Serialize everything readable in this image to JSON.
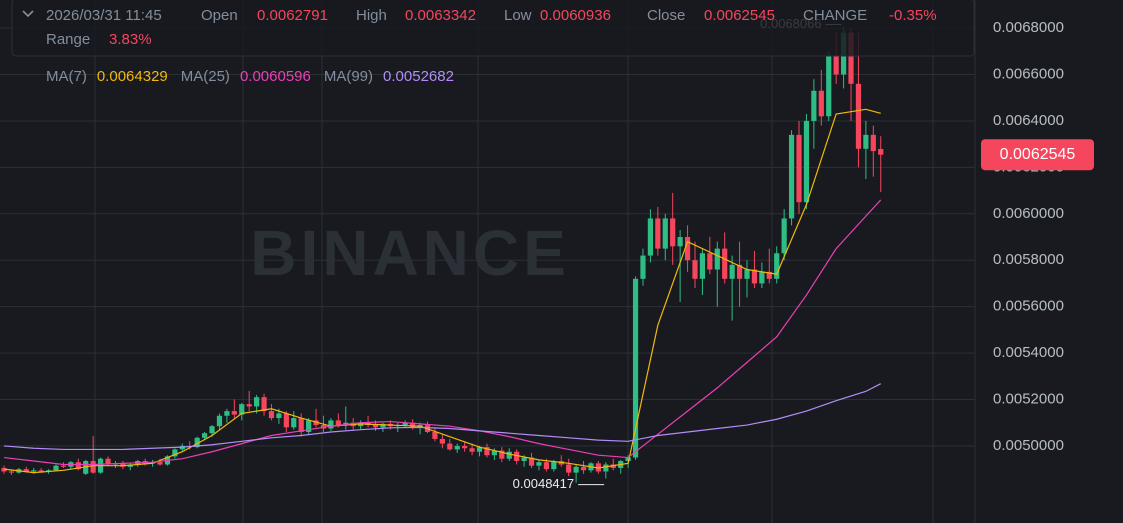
{
  "info": {
    "datetime": "2026/03/31 11:45",
    "open_label": "Open",
    "high_label": "High",
    "low_label": "Low",
    "close_label": "Close",
    "change_label": "CHANGE",
    "change": "-0.35%",
    "range_label": "Range",
    "range": "3.83%"
  },
  "watermark": "BINANCE",
  "chart_data": {
    "type": "candlestick",
    "up_color": "#2ebd85",
    "down_color": "#f6465d",
    "ylim": [
      0.004668,
      0.006921
    ],
    "yticks": [
      {
        "value": 0.005,
        "label": "0.0050000"
      },
      {
        "value": 0.0052,
        "label": "0.0052000"
      },
      {
        "value": 0.0054,
        "label": "0.0054000"
      },
      {
        "value": 0.0056,
        "label": "0.0056000"
      },
      {
        "value": 0.0058,
        "label": "0.0058000"
      },
      {
        "value": 0.006,
        "label": "0.0060000"
      },
      {
        "value": 0.0062,
        "label": "0.0062000"
      },
      {
        "value": 0.0064,
        "label": "0.0064000"
      },
      {
        "value": 0.0066,
        "label": "0.0066000"
      },
      {
        "value": 0.0068,
        "label": "0.0068000"
      }
    ],
    "grid": true,
    "candles": [
      [
        0.004905,
        0.004915,
        0.00488,
        0.00489
      ],
      [
        0.00489,
        0.0049,
        0.004875,
        0.004885
      ],
      [
        0.004885,
        0.004905,
        0.00488,
        0.0049
      ],
      [
        0.0049,
        0.00491,
        0.004885,
        0.00489
      ],
      [
        0.00489,
        0.004905,
        0.00488,
        0.004895
      ],
      [
        0.004895,
        0.004905,
        0.004885,
        0.00489
      ],
      [
        0.00489,
        0.0049,
        0.00488,
        0.004895
      ],
      [
        0.004895,
        0.00492,
        0.00489,
        0.004915
      ],
      [
        0.004915,
        0.00493,
        0.004905,
        0.00491
      ],
      [
        0.00491,
        0.004935,
        0.0049,
        0.00493
      ],
      [
        0.00493,
        0.004945,
        0.004895,
        0.0049
      ],
      [
        0.00488,
        0.00494,
        0.004875,
        0.004935
      ],
      [
        0.004935,
        0.005043,
        0.00488,
        0.004885
      ],
      [
        0.004885,
        0.00495,
        0.00488,
        0.004945
      ],
      [
        0.004945,
        0.004955,
        0.004915,
        0.00492
      ],
      [
        0.00492,
        0.004935,
        0.004905,
        0.004925
      ],
      [
        0.004925,
        0.004935,
        0.0049,
        0.00491
      ],
      [
        0.00491,
        0.004925,
        0.004895,
        0.00492
      ],
      [
        0.00492,
        0.00494,
        0.00491,
        0.004935
      ],
      [
        0.004935,
        0.004945,
        0.004915,
        0.004925
      ],
      [
        0.004925,
        0.00494,
        0.00491,
        0.00493
      ],
      [
        0.00493,
        0.004945,
        0.004915,
        0.00492
      ],
      [
        0.00492,
        0.00496,
        0.004915,
        0.004955
      ],
      [
        0.004955,
        0.00499,
        0.004945,
        0.004985
      ],
      [
        0.004985,
        0.00501,
        0.004975,
        0.005
      ],
      [
        0.005,
        0.00502,
        0.004985,
        0.004995
      ],
      [
        0.004995,
        0.00504,
        0.00499,
        0.005035
      ],
      [
        0.005035,
        0.00506,
        0.005025,
        0.005055
      ],
      [
        0.005055,
        0.00509,
        0.00504,
        0.005085
      ],
      [
        0.005085,
        0.00514,
        0.00507,
        0.00513
      ],
      [
        0.00513,
        0.00516,
        0.0051,
        0.00515
      ],
      [
        0.00515,
        0.0052,
        0.00512,
        0.005135
      ],
      [
        0.005135,
        0.005185,
        0.00511,
        0.00518
      ],
      [
        0.00518,
        0.005237,
        0.00515,
        0.00517
      ],
      [
        0.00517,
        0.00522,
        0.00514,
        0.00521
      ],
      [
        0.00521,
        0.005225,
        0.00513,
        0.00515
      ],
      [
        0.00515,
        0.00518,
        0.00511,
        0.00512
      ],
      [
        0.00512,
        0.00516,
        0.005095,
        0.00514
      ],
      [
        0.00514,
        0.00515,
        0.00506,
        0.00508
      ],
      [
        0.00508,
        0.00515,
        0.00507,
        0.00512
      ],
      [
        0.00512,
        0.00514,
        0.00504,
        0.00506
      ],
      [
        0.00506,
        0.00512,
        0.00505,
        0.00511
      ],
      [
        0.00511,
        0.00516,
        0.00508,
        0.00509
      ],
      [
        0.00509,
        0.00513,
        0.00506,
        0.005075
      ],
      [
        0.005075,
        0.00512,
        0.005065,
        0.00511
      ],
      [
        0.00511,
        0.00514,
        0.00508,
        0.00509
      ],
      [
        0.00509,
        0.00517,
        0.00507,
        0.0051
      ],
      [
        0.0051,
        0.00512,
        0.00507,
        0.005085
      ],
      [
        0.005085,
        0.00511,
        0.00507,
        0.0051
      ],
      [
        0.0051,
        0.00513,
        0.00508,
        0.00509
      ],
      [
        0.00509,
        0.00511,
        0.005065,
        0.00508
      ],
      [
        0.00508,
        0.0051,
        0.00506,
        0.005095
      ],
      [
        0.005095,
        0.00511,
        0.00507,
        0.005085
      ],
      [
        0.005085,
        0.0051,
        0.00506,
        0.00509
      ],
      [
        0.00509,
        0.00511,
        0.00508,
        0.0051
      ],
      [
        0.0051,
        0.005115,
        0.00507,
        0.00508
      ],
      [
        0.00508,
        0.0051,
        0.00505,
        0.00509
      ],
      [
        0.00509,
        0.005105,
        0.005055,
        0.00506
      ],
      [
        0.00506,
        0.005075,
        0.00502,
        0.00503
      ],
      [
        0.00503,
        0.00505,
        0.00499,
        0.00501
      ],
      [
        0.00501,
        0.00503,
        0.00498,
        0.004985
      ],
      [
        0.004985,
        0.00501,
        0.00497,
        0.005
      ],
      [
        0.005,
        0.00502,
        0.004975,
        0.00499
      ],
      [
        0.00499,
        0.00501,
        0.00496,
        0.004975
      ],
      [
        0.004975,
        0.005,
        0.004955,
        0.004995
      ],
      [
        0.004995,
        0.00501,
        0.00495,
        0.00496
      ],
      [
        0.00496,
        0.00499,
        0.00494,
        0.00498
      ],
      [
        0.00498,
        0.004995,
        0.00493,
        0.004945
      ],
      [
        0.004945,
        0.00499,
        0.004935,
        0.004975
      ],
      [
        0.004975,
        0.004985,
        0.00492,
        0.004935
      ],
      [
        0.004935,
        0.00496,
        0.00491,
        0.00495
      ],
      [
        0.00495,
        0.00497,
        0.004905,
        0.004915
      ],
      [
        0.004915,
        0.00494,
        0.004895,
        0.00493
      ],
      [
        0.00493,
        0.004945,
        0.00489,
        0.0049
      ],
      [
        0.0049,
        0.00494,
        0.00489,
        0.004935
      ],
      [
        0.004935,
        0.00496,
        0.00491,
        0.00492
      ],
      [
        0.00492,
        0.004945,
        0.00487,
        0.004885
      ],
      [
        0.004885,
        0.00492,
        0.0048417,
        0.00491
      ],
      [
        0.00491,
        0.004935,
        0.00488,
        0.004895
      ],
      [
        0.004895,
        0.00493,
        0.004885,
        0.004925
      ],
      [
        0.004925,
        0.004935,
        0.00488,
        0.00489
      ],
      [
        0.00489,
        0.00493,
        0.00486,
        0.00492
      ],
      [
        0.00492,
        0.004945,
        0.004895,
        0.004905
      ],
      [
        0.004905,
        0.00494,
        0.00488,
        0.004935
      ],
      [
        0.004935,
        0.00496,
        0.004905,
        0.00495
      ],
      [
        0.00495,
        0.00573,
        0.00494,
        0.00572
      ],
      [
        0.00572,
        0.00585,
        0.00569,
        0.00582
      ],
      [
        0.00582,
        0.00602,
        0.00579,
        0.00598
      ],
      [
        0.00598,
        0.00603,
        0.00582,
        0.00585
      ],
      [
        0.00585,
        0.006,
        0.0058,
        0.00598
      ],
      [
        0.00598,
        0.00609,
        0.00578,
        0.00586
      ],
      [
        0.00586,
        0.00593,
        0.00562,
        0.0059
      ],
      [
        0.0059,
        0.00595,
        0.00575,
        0.0058
      ],
      [
        0.0058,
        0.00588,
        0.00568,
        0.00572
      ],
      [
        0.00572,
        0.00585,
        0.00565,
        0.00583
      ],
      [
        0.00583,
        0.0059,
        0.00574,
        0.00576
      ],
      [
        0.00576,
        0.00588,
        0.0056,
        0.00585
      ],
      [
        0.00585,
        0.00592,
        0.0057,
        0.00572
      ],
      [
        0.00572,
        0.00582,
        0.00554,
        0.00578
      ],
      [
        0.00578,
        0.00588,
        0.0056,
        0.00572
      ],
      [
        0.00572,
        0.0058,
        0.00564,
        0.00576
      ],
      [
        0.00576,
        0.00584,
        0.00568,
        0.0057
      ],
      [
        0.0057,
        0.00579,
        0.00568,
        0.00575
      ],
      [
        0.00575,
        0.00585,
        0.0057,
        0.00572
      ],
      [
        0.00572,
        0.00586,
        0.0057,
        0.00583
      ],
      [
        0.00583,
        0.00602,
        0.0058,
        0.00598
      ],
      [
        0.00598,
        0.00636,
        0.00595,
        0.00634
      ],
      [
        0.00634,
        0.0064,
        0.006,
        0.00605
      ],
      [
        0.00605,
        0.00643,
        0.00602,
        0.0064
      ],
      [
        0.0064,
        0.00658,
        0.00628,
        0.00653
      ],
      [
        0.00653,
        0.00662,
        0.00638,
        0.00642
      ],
      [
        0.00642,
        0.0067,
        0.0064,
        0.00668
      ],
      [
        0.00668,
        0.00678,
        0.00656,
        0.0066
      ],
      [
        0.0066,
        0.0068066,
        0.00654,
        0.00678
      ],
      [
        0.00678,
        0.0068,
        0.0064,
        0.00656
      ],
      [
        0.00656,
        0.00678,
        0.0062,
        0.00628
      ],
      [
        0.00628,
        0.0064,
        0.00615,
        0.00634
      ],
      [
        0.00634,
        0.00638,
        0.00616,
        0.00627
      ],
      [
        0.0062791,
        0.0063342,
        0.0060936,
        0.0062545
      ]
    ],
    "series": [
      {
        "name": "MA(7)",
        "color": "#f0b90b",
        "x": [
          0,
          4,
          8,
          12,
          16,
          20,
          24,
          28,
          32,
          36,
          40,
          44,
          48,
          52,
          56,
          60,
          64,
          68,
          72,
          76,
          80,
          84,
          88,
          92,
          96,
          100,
          104,
          108,
          112,
          116,
          118
        ],
        "values": [
          0.0049,
          0.004885,
          0.004895,
          0.004915,
          0.004915,
          0.004925,
          0.004975,
          0.005045,
          0.00514,
          0.00516,
          0.00512,
          0.005085,
          0.005095,
          0.00509,
          0.005085,
          0.00504,
          0.004995,
          0.004965,
          0.00494,
          0.004925,
          0.004905,
          0.004925,
          0.00552,
          0.00588,
          0.00582,
          0.00576,
          0.00574,
          0.00604,
          0.00643,
          0.00645,
          0.0064329
        ]
      },
      {
        "name": "MA(25)",
        "color": "#eb40b5",
        "x": [
          0,
          4,
          8,
          12,
          16,
          20,
          24,
          28,
          32,
          36,
          40,
          44,
          48,
          52,
          56,
          60,
          64,
          68,
          72,
          76,
          80,
          84,
          88,
          92,
          96,
          100,
          104,
          108,
          112,
          116,
          118
        ],
        "values": [
          0.00495,
          0.004935,
          0.00492,
          0.00492,
          0.004925,
          0.00493,
          0.004945,
          0.004975,
          0.00501,
          0.005045,
          0.005065,
          0.005085,
          0.0051,
          0.005105,
          0.005095,
          0.005085,
          0.005065,
          0.00504,
          0.00501,
          0.004985,
          0.00496,
          0.00495,
          0.00505,
          0.00515,
          0.00525,
          0.00536,
          0.00547,
          0.00565,
          0.00585,
          0.00599,
          0.0060596
        ]
      },
      {
        "name": "MA(99)",
        "color": "#b38cf7",
        "x": [
          0,
          4,
          8,
          12,
          16,
          20,
          24,
          28,
          32,
          36,
          40,
          44,
          48,
          52,
          56,
          60,
          64,
          68,
          72,
          76,
          80,
          84,
          88,
          92,
          96,
          100,
          104,
          108,
          112,
          116,
          118
        ],
        "values": [
          0.005,
          0.00499,
          0.004985,
          0.004985,
          0.004985,
          0.00499,
          0.004995,
          0.005005,
          0.00502,
          0.005035,
          0.005045,
          0.00506,
          0.00507,
          0.005078,
          0.00508,
          0.005075,
          0.005065,
          0.005055,
          0.005045,
          0.005035,
          0.005025,
          0.00502,
          0.005045,
          0.00506,
          0.005075,
          0.00509,
          0.005115,
          0.00515,
          0.005195,
          0.005235,
          0.0052682
        ]
      }
    ]
  }
}
